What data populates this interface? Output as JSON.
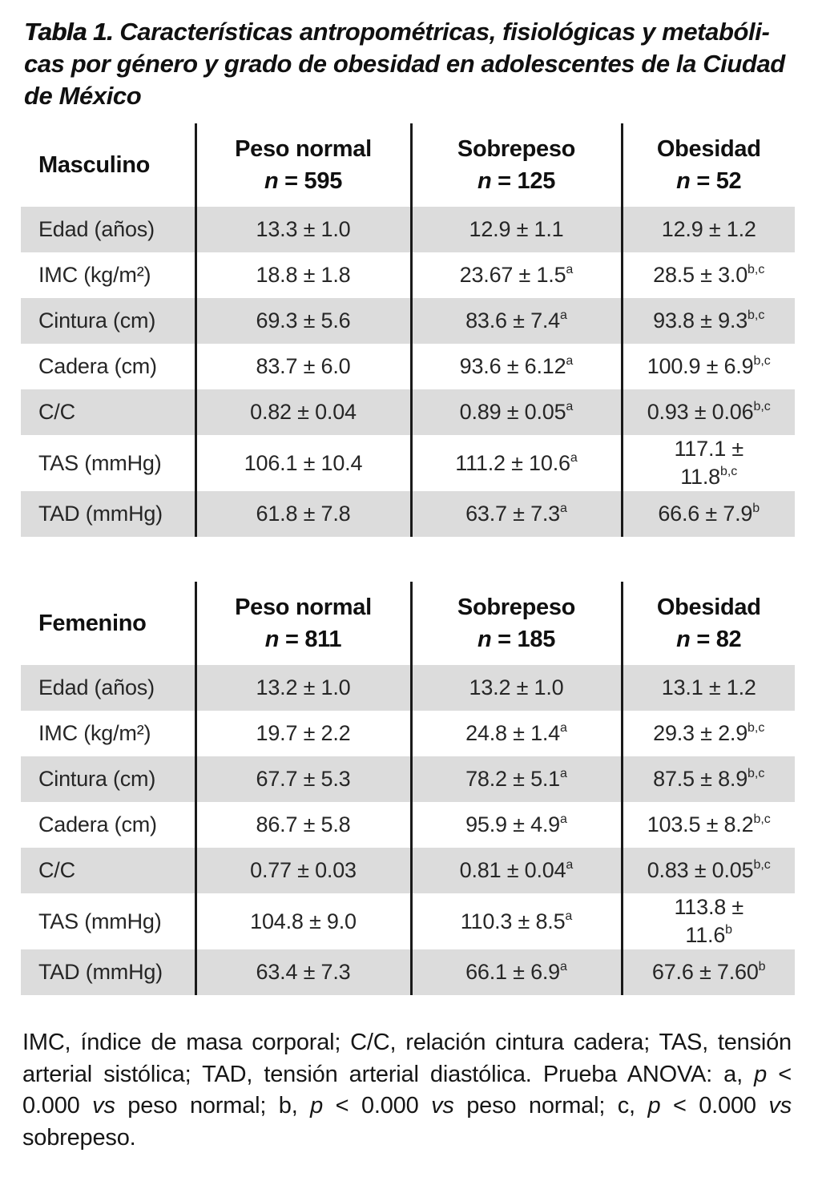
{
  "colors": {
    "row_shade": "#dcdcdc",
    "divider": "#1a1a1a",
    "text": "#262626",
    "heading": "#101010"
  },
  "title": {
    "prefix": "Tabla 1.",
    "lines": [
      "Características antropométricas, fisiológicas y metabóli-",
      "cas por género y grado de obesidad en adolescentes de la Ciudad",
      "de México"
    ]
  },
  "tables": [
    {
      "group_label": "Masculino",
      "columns": [
        {
          "title": "Peso normal",
          "n_italic": "n",
          "n_value": "= 595"
        },
        {
          "title": "Sobrepeso",
          "n_italic": "n",
          "n_value": "= 125"
        },
        {
          "title": "Obesidad",
          "n_italic": "n",
          "n_value": "= 52"
        }
      ],
      "rows": [
        {
          "label": "Edad (años)",
          "cells": [
            {
              "t": "13.3 ± 1.0"
            },
            {
              "t": "12.9 ± 1.1"
            },
            {
              "t": "12.9 ± 1.2"
            }
          ]
        },
        {
          "label": "IMC (kg/m²)",
          "cells": [
            {
              "t": "18.8 ± 1.8"
            },
            {
              "t": "23.67 ± 1.5",
              "sup": "a"
            },
            {
              "t": "28.5 ± 3.0",
              "sup": "b,c"
            }
          ]
        },
        {
          "label": "Cintura (cm)",
          "cells": [
            {
              "t": "69.3 ± 5.6"
            },
            {
              "t": "83.6 ± 7.4",
              "sup": "a"
            },
            {
              "t": "93.8 ± 9.3",
              "sup": "b,c"
            }
          ]
        },
        {
          "label": "Cadera (cm)",
          "cells": [
            {
              "t": "83.7 ± 6.0"
            },
            {
              "t": "93.6 ± 6.12",
              "sup": "a"
            },
            {
              "t": "100.9 ± 6.9",
              "sup": "b,c"
            }
          ]
        },
        {
          "label": "C/C",
          "cells": [
            {
              "t": "0.82 ± 0.04"
            },
            {
              "t": "0.89 ± 0.05",
              "sup": "a"
            },
            {
              "t": "0.93 ± 0.06",
              "sup": "b,c"
            }
          ]
        },
        {
          "label": "TAS (mmHg)",
          "cells": [
            {
              "t": "106.1 ± 10.4"
            },
            {
              "t": "111.2 ± 10.6",
              "sup": "a"
            },
            {
              "lines": [
                "117.1 ±",
                "11.8"
              ],
              "sup": "b,c"
            }
          ]
        },
        {
          "label": "TAD (mmHg)",
          "cells": [
            {
              "t": "61.8 ± 7.8"
            },
            {
              "t": "63.7 ± 7.3",
              "sup": "a"
            },
            {
              "t": "66.6 ± 7.9",
              "sup": "b"
            }
          ]
        }
      ]
    },
    {
      "group_label": "Femenino",
      "columns": [
        {
          "title": "Peso normal",
          "n_italic": "n",
          "n_value": "= 811"
        },
        {
          "title": "Sobrepeso",
          "n_italic": "n",
          "n_value": "= 185"
        },
        {
          "title": "Obesidad",
          "n_italic": "n",
          "n_value": "= 82"
        }
      ],
      "rows": [
        {
          "label": "Edad (años)",
          "cells": [
            {
              "t": "13.2 ± 1.0"
            },
            {
              "t": "13.2 ± 1.0"
            },
            {
              "t": "13.1 ± 1.2"
            }
          ]
        },
        {
          "label": "IMC (kg/m²)",
          "cells": [
            {
              "t": "19.7 ± 2.2"
            },
            {
              "t": "24.8 ± 1.4",
              "sup": "a"
            },
            {
              "t": "29.3 ± 2.9",
              "sup": "b,c"
            }
          ]
        },
        {
          "label": "Cintura (cm)",
          "cells": [
            {
              "t": "67.7 ± 5.3"
            },
            {
              "t": "78.2 ± 5.1",
              "sup": "a"
            },
            {
              "t": "87.5 ± 8.9",
              "sup": "b,c"
            }
          ]
        },
        {
          "label": "Cadera (cm)",
          "cells": [
            {
              "t": "86.7 ± 5.8"
            },
            {
              "t": "95.9 ± 4.9",
              "sup": "a"
            },
            {
              "t": "103.5 ± 8.2",
              "sup": "b,c"
            }
          ]
        },
        {
          "label": "C/C",
          "cells": [
            {
              "t": "0.77 ± 0.03"
            },
            {
              "t": "0.81 ± 0.04",
              "sup": "a"
            },
            {
              "t": "0.83 ± 0.05",
              "sup": "b,c"
            }
          ]
        },
        {
          "label": "TAS (mmHg)",
          "cells": [
            {
              "t": "104.8 ± 9.0"
            },
            {
              "t": "110.3 ± 8.5",
              "sup": "a"
            },
            {
              "lines": [
                "113.8 ±",
                "11.6"
              ],
              "sup": "b"
            }
          ]
        },
        {
          "label": "TAD (mmHg)",
          "cells": [
            {
              "t": "63.4 ± 7.3"
            },
            {
              "t": "66.1 ± 6.9",
              "sup": "a"
            },
            {
              "t": "67.6 ± 7.60",
              "sup": "b"
            }
          ]
        }
      ]
    }
  ],
  "footnote": {
    "segments": [
      {
        "t": "IMC, índice de masa corporal; C/C, relación cintura cadera; TAS, tensión arterial sistólica; TAD, tensión arterial diastólica. Prueba ANOVA: a, "
      },
      {
        "t": "p",
        "i": true
      },
      {
        "t": " < 0.000 "
      },
      {
        "t": "vs",
        "i": true
      },
      {
        "t": " peso normal; b, "
      },
      {
        "t": "p",
        "i": true
      },
      {
        "t": " < 0.000 "
      },
      {
        "t": "vs",
        "i": true
      },
      {
        "t": " peso normal; c, "
      },
      {
        "t": "p",
        "i": true
      },
      {
        "t": " < 0.000 "
      },
      {
        "t": "vs",
        "i": true
      },
      {
        "t": " sobrepeso."
      }
    ]
  }
}
